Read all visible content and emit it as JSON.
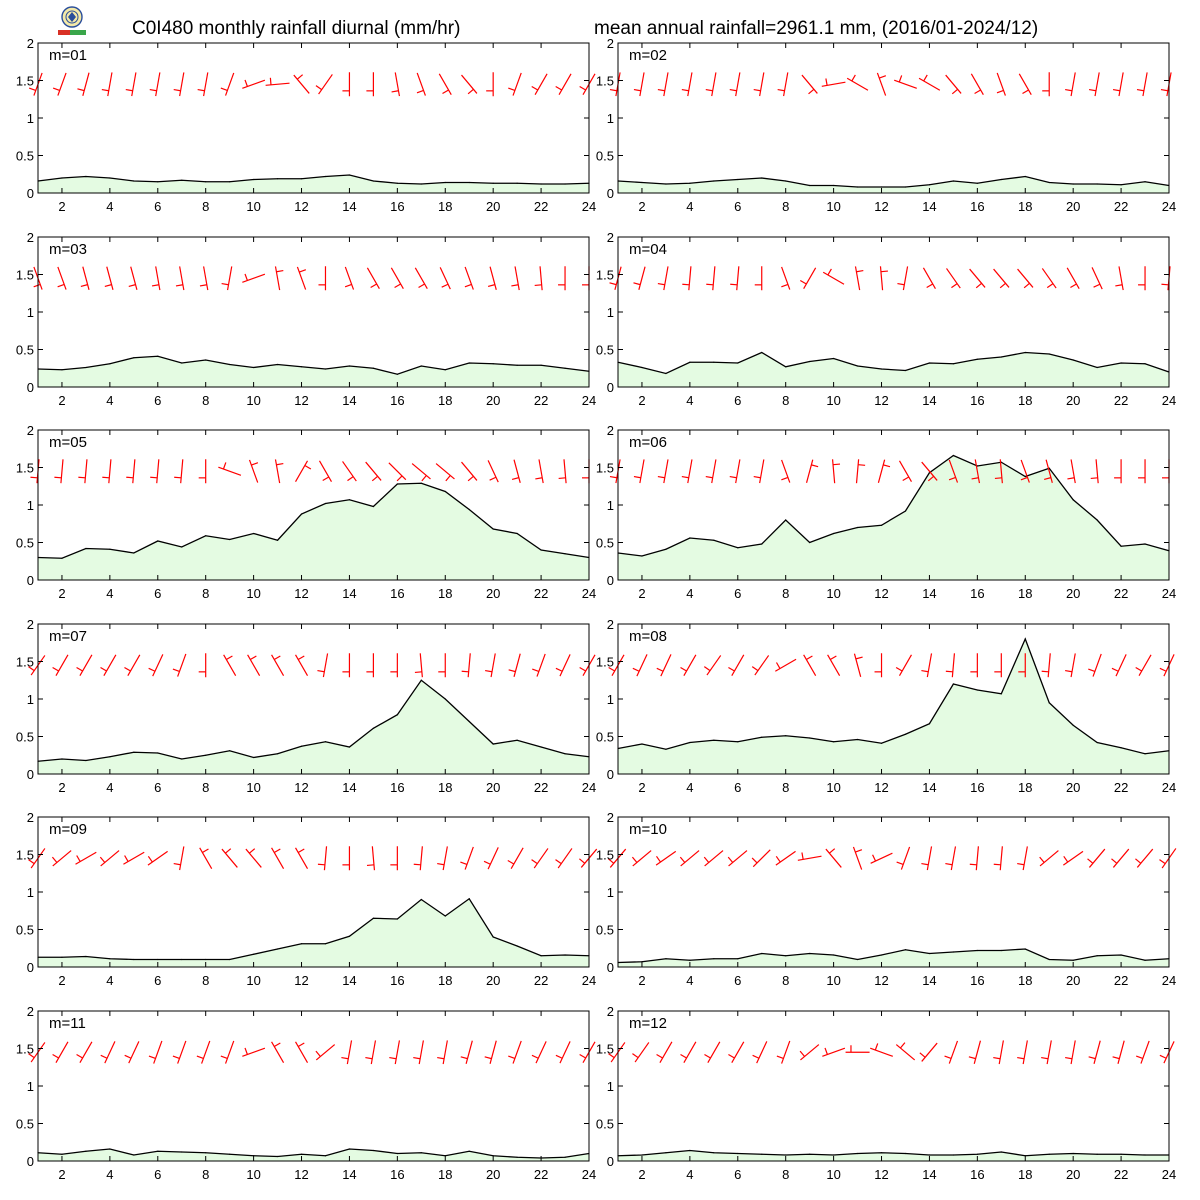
{
  "figure": {
    "title_left": "C0I480 monthly rainfall diurnal (mm/hr)",
    "title_right": "mean annual rainfall=2961.1 mm, (2016/01-2024/12)",
    "fill_color": "#e4fbe2",
    "line_color": "#000000",
    "wind_color": "#ff0000"
  },
  "chart_data": [
    {
      "type": "area",
      "label": "m=01",
      "x": [
        1,
        2,
        3,
        4,
        5,
        6,
        7,
        8,
        9,
        10,
        11,
        12,
        13,
        14,
        15,
        16,
        17,
        18,
        19,
        20,
        21,
        22,
        23,
        24
      ],
      "values": [
        0.16,
        0.2,
        0.22,
        0.2,
        0.16,
        0.15,
        0.17,
        0.15,
        0.15,
        0.18,
        0.19,
        0.19,
        0.22,
        0.24,
        0.16,
        0.13,
        0.12,
        0.14,
        0.14,
        0.13,
        0.13,
        0.12,
        0.12,
        0.13
      ],
      "xlim": [
        1,
        24
      ],
      "ylim": [
        0,
        2
      ],
      "xticks": [
        2,
        4,
        6,
        8,
        10,
        12,
        14,
        16,
        18,
        20,
        22,
        24
      ],
      "yticks": [
        0,
        0.5,
        1,
        1.5,
        2
      ],
      "wind_dir": [
        200,
        200,
        195,
        190,
        190,
        190,
        190,
        190,
        200,
        250,
        265,
        320,
        215,
        180,
        180,
        170,
        160,
        150,
        140,
        180,
        200,
        210,
        210,
        210
      ]
    },
    {
      "type": "area",
      "label": "m=02",
      "x": [
        1,
        2,
        3,
        4,
        5,
        6,
        7,
        8,
        9,
        10,
        11,
        12,
        13,
        14,
        15,
        16,
        17,
        18,
        19,
        20,
        21,
        22,
        23,
        24
      ],
      "values": [
        0.16,
        0.14,
        0.12,
        0.13,
        0.16,
        0.18,
        0.2,
        0.16,
        0.1,
        0.1,
        0.08,
        0.08,
        0.08,
        0.11,
        0.16,
        0.13,
        0.18,
        0.22,
        0.14,
        0.12,
        0.12,
        0.11,
        0.15,
        0.1
      ],
      "xlim": [
        1,
        24
      ],
      "ylim": [
        0,
        2
      ],
      "xticks": [
        2,
        4,
        6,
        8,
        10,
        12,
        14,
        16,
        18,
        20,
        22,
        24
      ],
      "yticks": [
        0,
        0.5,
        1,
        1.5,
        2
      ],
      "wind_dir": [
        190,
        190,
        190,
        190,
        190,
        190,
        190,
        190,
        140,
        260,
        300,
        340,
        290,
        300,
        140,
        150,
        160,
        150,
        180,
        190,
        190,
        190,
        190,
        190
      ]
    },
    {
      "type": "area",
      "label": "m=03",
      "x": [
        1,
        2,
        3,
        4,
        5,
        6,
        7,
        8,
        9,
        10,
        11,
        12,
        13,
        14,
        15,
        16,
        17,
        18,
        19,
        20,
        21,
        22,
        23,
        24
      ],
      "values": [
        0.24,
        0.23,
        0.26,
        0.31,
        0.39,
        0.41,
        0.32,
        0.36,
        0.3,
        0.26,
        0.3,
        0.27,
        0.24,
        0.28,
        0.25,
        0.17,
        0.28,
        0.23,
        0.32,
        0.31,
        0.29,
        0.29,
        0.25,
        0.21
      ],
      "xlim": [
        1,
        24
      ],
      "ylim": [
        0,
        2
      ],
      "xticks": [
        2,
        4,
        6,
        8,
        10,
        12,
        14,
        16,
        18,
        20,
        22,
        24
      ],
      "yticks": [
        0,
        0.5,
        1,
        1.5,
        2
      ],
      "wind_dir": [
        160,
        160,
        165,
        165,
        165,
        170,
        170,
        170,
        190,
        250,
        350,
        340,
        180,
        160,
        150,
        150,
        150,
        155,
        160,
        165,
        170,
        175,
        180,
        180
      ]
    },
    {
      "type": "area",
      "label": "m=04",
      "x": [
        1,
        2,
        3,
        4,
        5,
        6,
        7,
        8,
        9,
        10,
        11,
        12,
        13,
        14,
        15,
        16,
        17,
        18,
        19,
        20,
        21,
        22,
        23,
        24
      ],
      "values": [
        0.33,
        0.26,
        0.18,
        0.33,
        0.33,
        0.32,
        0.46,
        0.27,
        0.34,
        0.38,
        0.28,
        0.24,
        0.22,
        0.32,
        0.31,
        0.37,
        0.4,
        0.46,
        0.44,
        0.36,
        0.26,
        0.32,
        0.31,
        0.2
      ],
      "xlim": [
        1,
        24
      ],
      "ylim": [
        0,
        2
      ],
      "xticks": [
        2,
        4,
        6,
        8,
        10,
        12,
        14,
        16,
        18,
        20,
        22,
        24
      ],
      "yticks": [
        0,
        0.5,
        1,
        1.5,
        2
      ],
      "wind_dir": [
        195,
        195,
        190,
        185,
        185,
        185,
        180,
        160,
        210,
        300,
        350,
        355,
        190,
        150,
        145,
        140,
        140,
        140,
        145,
        150,
        155,
        170,
        180,
        185
      ]
    },
    {
      "type": "area",
      "label": "m=05",
      "x": [
        1,
        2,
        3,
        4,
        5,
        6,
        7,
        8,
        9,
        10,
        11,
        12,
        13,
        14,
        15,
        16,
        17,
        18,
        19,
        20,
        21,
        22,
        23,
        24
      ],
      "values": [
        0.3,
        0.29,
        0.42,
        0.41,
        0.36,
        0.52,
        0.44,
        0.59,
        0.54,
        0.62,
        0.53,
        0.88,
        1.02,
        1.07,
        0.98,
        1.28,
        1.29,
        1.18,
        0.94,
        0.68,
        0.62,
        0.4,
        0.35,
        0.3
      ],
      "xlim": [
        1,
        24
      ],
      "ylim": [
        0,
        2
      ],
      "xticks": [
        2,
        4,
        6,
        8,
        10,
        12,
        14,
        16,
        18,
        20,
        22,
        24
      ],
      "yticks": [
        0,
        0.5,
        1,
        1.5,
        2
      ],
      "wind_dir": [
        185,
        185,
        185,
        185,
        185,
        185,
        185,
        180,
        290,
        340,
        350,
        30,
        150,
        145,
        140,
        135,
        130,
        130,
        140,
        155,
        165,
        170,
        175,
        180
      ]
    },
    {
      "type": "area",
      "label": "m=06",
      "x": [
        1,
        2,
        3,
        4,
        5,
        6,
        7,
        8,
        9,
        10,
        11,
        12,
        13,
        14,
        15,
        16,
        17,
        18,
        19,
        20,
        21,
        22,
        23,
        24
      ],
      "values": [
        0.36,
        0.32,
        0.41,
        0.56,
        0.53,
        0.43,
        0.48,
        0.8,
        0.5,
        0.62,
        0.7,
        0.73,
        0.92,
        1.43,
        1.66,
        1.52,
        1.57,
        1.38,
        1.49,
        1.07,
        0.8,
        0.45,
        0.48,
        0.39
      ],
      "xlim": [
        1,
        24
      ],
      "ylim": [
        0,
        2
      ],
      "xticks": [
        2,
        4,
        6,
        8,
        10,
        12,
        14,
        16,
        18,
        20,
        22,
        24
      ],
      "yticks": [
        0,
        0.5,
        1,
        1.5,
        2
      ],
      "wind_dir": [
        190,
        190,
        190,
        190,
        190,
        190,
        190,
        160,
        15,
        355,
        5,
        15,
        150,
        140,
        160,
        170,
        175,
        160,
        165,
        170,
        175,
        180,
        180,
        180
      ]
    },
    {
      "type": "area",
      "label": "m=07",
      "x": [
        1,
        2,
        3,
        4,
        5,
        6,
        7,
        8,
        9,
        10,
        11,
        12,
        13,
        14,
        15,
        16,
        17,
        18,
        19,
        20,
        21,
        22,
        23,
        24
      ],
      "values": [
        0.17,
        0.2,
        0.18,
        0.23,
        0.29,
        0.28,
        0.2,
        0.25,
        0.31,
        0.22,
        0.27,
        0.37,
        0.43,
        0.36,
        0.61,
        0.79,
        1.25,
        1.0,
        0.7,
        0.4,
        0.45,
        0.36,
        0.27,
        0.23
      ],
      "xlim": [
        1,
        24
      ],
      "ylim": [
        0,
        2
      ],
      "xticks": [
        2,
        4,
        6,
        8,
        10,
        12,
        14,
        16,
        18,
        20,
        22,
        24
      ],
      "yticks": [
        0,
        0.5,
        1,
        1.5,
        2
      ],
      "wind_dir": [
        215,
        210,
        210,
        210,
        210,
        205,
        200,
        180,
        330,
        330,
        330,
        330,
        190,
        180,
        180,
        180,
        175,
        180,
        185,
        190,
        195,
        200,
        205,
        210
      ]
    },
    {
      "type": "area",
      "label": "m=08",
      "x": [
        1,
        2,
        3,
        4,
        5,
        6,
        7,
        8,
        9,
        10,
        11,
        12,
        13,
        14,
        15,
        16,
        17,
        18,
        19,
        20,
        21,
        22,
        23,
        24
      ],
      "values": [
        0.34,
        0.4,
        0.33,
        0.42,
        0.45,
        0.43,
        0.49,
        0.51,
        0.48,
        0.43,
        0.46,
        0.41,
        0.53,
        0.67,
        1.2,
        1.12,
        1.07,
        1.8,
        0.95,
        0.65,
        0.42,
        0.35,
        0.27,
        0.31
      ],
      "xlim": [
        1,
        24
      ],
      "ylim": [
        0,
        2
      ],
      "xticks": [
        2,
        4,
        6,
        8,
        10,
        12,
        14,
        16,
        18,
        20,
        22,
        24
      ],
      "yticks": [
        0,
        0.5,
        1,
        1.5,
        2
      ],
      "wind_dir": [
        210,
        205,
        205,
        210,
        215,
        210,
        215,
        240,
        330,
        330,
        345,
        180,
        210,
        190,
        185,
        180,
        180,
        180,
        185,
        190,
        200,
        205,
        210,
        205
      ]
    },
    {
      "type": "area",
      "label": "m=09",
      "x": [
        1,
        2,
        3,
        4,
        5,
        6,
        7,
        8,
        9,
        10,
        11,
        12,
        13,
        14,
        15,
        16,
        17,
        18,
        19,
        20,
        21,
        22,
        23,
        24
      ],
      "values": [
        0.13,
        0.13,
        0.14,
        0.11,
        0.1,
        0.1,
        0.1,
        0.1,
        0.1,
        0.17,
        0.24,
        0.31,
        0.31,
        0.41,
        0.65,
        0.64,
        0.9,
        0.68,
        0.91,
        0.4,
        0.28,
        0.15,
        0.16,
        0.15
      ],
      "xlim": [
        1,
        24
      ],
      "ylim": [
        0,
        2
      ],
      "xticks": [
        2,
        4,
        6,
        8,
        10,
        12,
        14,
        16,
        18,
        20,
        22,
        24
      ],
      "yticks": [
        0,
        0.5,
        1,
        1.5,
        2
      ],
      "wind_dir": [
        215,
        230,
        240,
        230,
        240,
        235,
        190,
        330,
        320,
        320,
        330,
        330,
        185,
        180,
        175,
        180,
        185,
        190,
        200,
        205,
        210,
        215,
        215,
        220
      ]
    },
    {
      "type": "area",
      "label": "m=10",
      "x": [
        1,
        2,
        3,
        4,
        5,
        6,
        7,
        8,
        9,
        10,
        11,
        12,
        13,
        14,
        15,
        16,
        17,
        18,
        19,
        20,
        21,
        22,
        23,
        24
      ],
      "values": [
        0.06,
        0.07,
        0.11,
        0.09,
        0.11,
        0.11,
        0.18,
        0.15,
        0.18,
        0.16,
        0.1,
        0.16,
        0.23,
        0.18,
        0.2,
        0.22,
        0.22,
        0.24,
        0.1,
        0.09,
        0.15,
        0.16,
        0.09,
        0.11
      ],
      "xlim": [
        1,
        24
      ],
      "ylim": [
        0,
        2
      ],
      "xticks": [
        2,
        4,
        6,
        8,
        10,
        12,
        14,
        16,
        18,
        20,
        22,
        24
      ],
      "yticks": [
        0,
        0.5,
        1,
        1.5,
        2
      ],
      "wind_dir": [
        220,
        230,
        235,
        230,
        230,
        230,
        225,
        235,
        260,
        320,
        340,
        245,
        200,
        190,
        190,
        185,
        185,
        190,
        230,
        235,
        220,
        220,
        220,
        215
      ]
    },
    {
      "type": "area",
      "label": "m=11",
      "x": [
        1,
        2,
        3,
        4,
        5,
        6,
        7,
        8,
        9,
        10,
        11,
        12,
        13,
        14,
        15,
        16,
        17,
        18,
        19,
        20,
        21,
        22,
        23,
        24
      ],
      "values": [
        0.11,
        0.09,
        0.13,
        0.16,
        0.08,
        0.13,
        0.12,
        0.11,
        0.09,
        0.07,
        0.06,
        0.09,
        0.07,
        0.16,
        0.14,
        0.1,
        0.11,
        0.07,
        0.13,
        0.07,
        0.05,
        0.04,
        0.05,
        0.1
      ],
      "xlim": [
        1,
        24
      ],
      "ylim": [
        0,
        2
      ],
      "xticks": [
        2,
        4,
        6,
        8,
        10,
        12,
        14,
        16,
        18,
        20,
        22,
        24
      ],
      "yticks": [
        0,
        0.5,
        1,
        1.5,
        2
      ],
      "wind_dir": [
        215,
        210,
        210,
        205,
        205,
        200,
        200,
        200,
        200,
        250,
        330,
        330,
        230,
        190,
        190,
        190,
        190,
        190,
        195,
        195,
        200,
        205,
        205,
        210
      ]
    },
    {
      "type": "area",
      "label": "m=12",
      "x": [
        1,
        2,
        3,
        4,
        5,
        6,
        7,
        8,
        9,
        10,
        11,
        12,
        13,
        14,
        15,
        16,
        17,
        18,
        19,
        20,
        21,
        22,
        23,
        24
      ],
      "values": [
        0.07,
        0.08,
        0.11,
        0.14,
        0.11,
        0.1,
        0.09,
        0.08,
        0.09,
        0.08,
        0.1,
        0.11,
        0.1,
        0.08,
        0.08,
        0.09,
        0.12,
        0.07,
        0.09,
        0.1,
        0.09,
        0.09,
        0.08,
        0.08
      ],
      "xlim": [
        1,
        24
      ],
      "ylim": [
        0,
        2
      ],
      "xticks": [
        2,
        4,
        6,
        8,
        10,
        12,
        14,
        16,
        18,
        20,
        22,
        24
      ],
      "yticks": [
        0,
        0.5,
        1,
        1.5,
        2
      ],
      "wind_dir": [
        215,
        215,
        210,
        210,
        210,
        210,
        205,
        200,
        230,
        250,
        270,
        290,
        310,
        220,
        200,
        195,
        190,
        190,
        190,
        190,
        195,
        195,
        200,
        205
      ]
    }
  ]
}
